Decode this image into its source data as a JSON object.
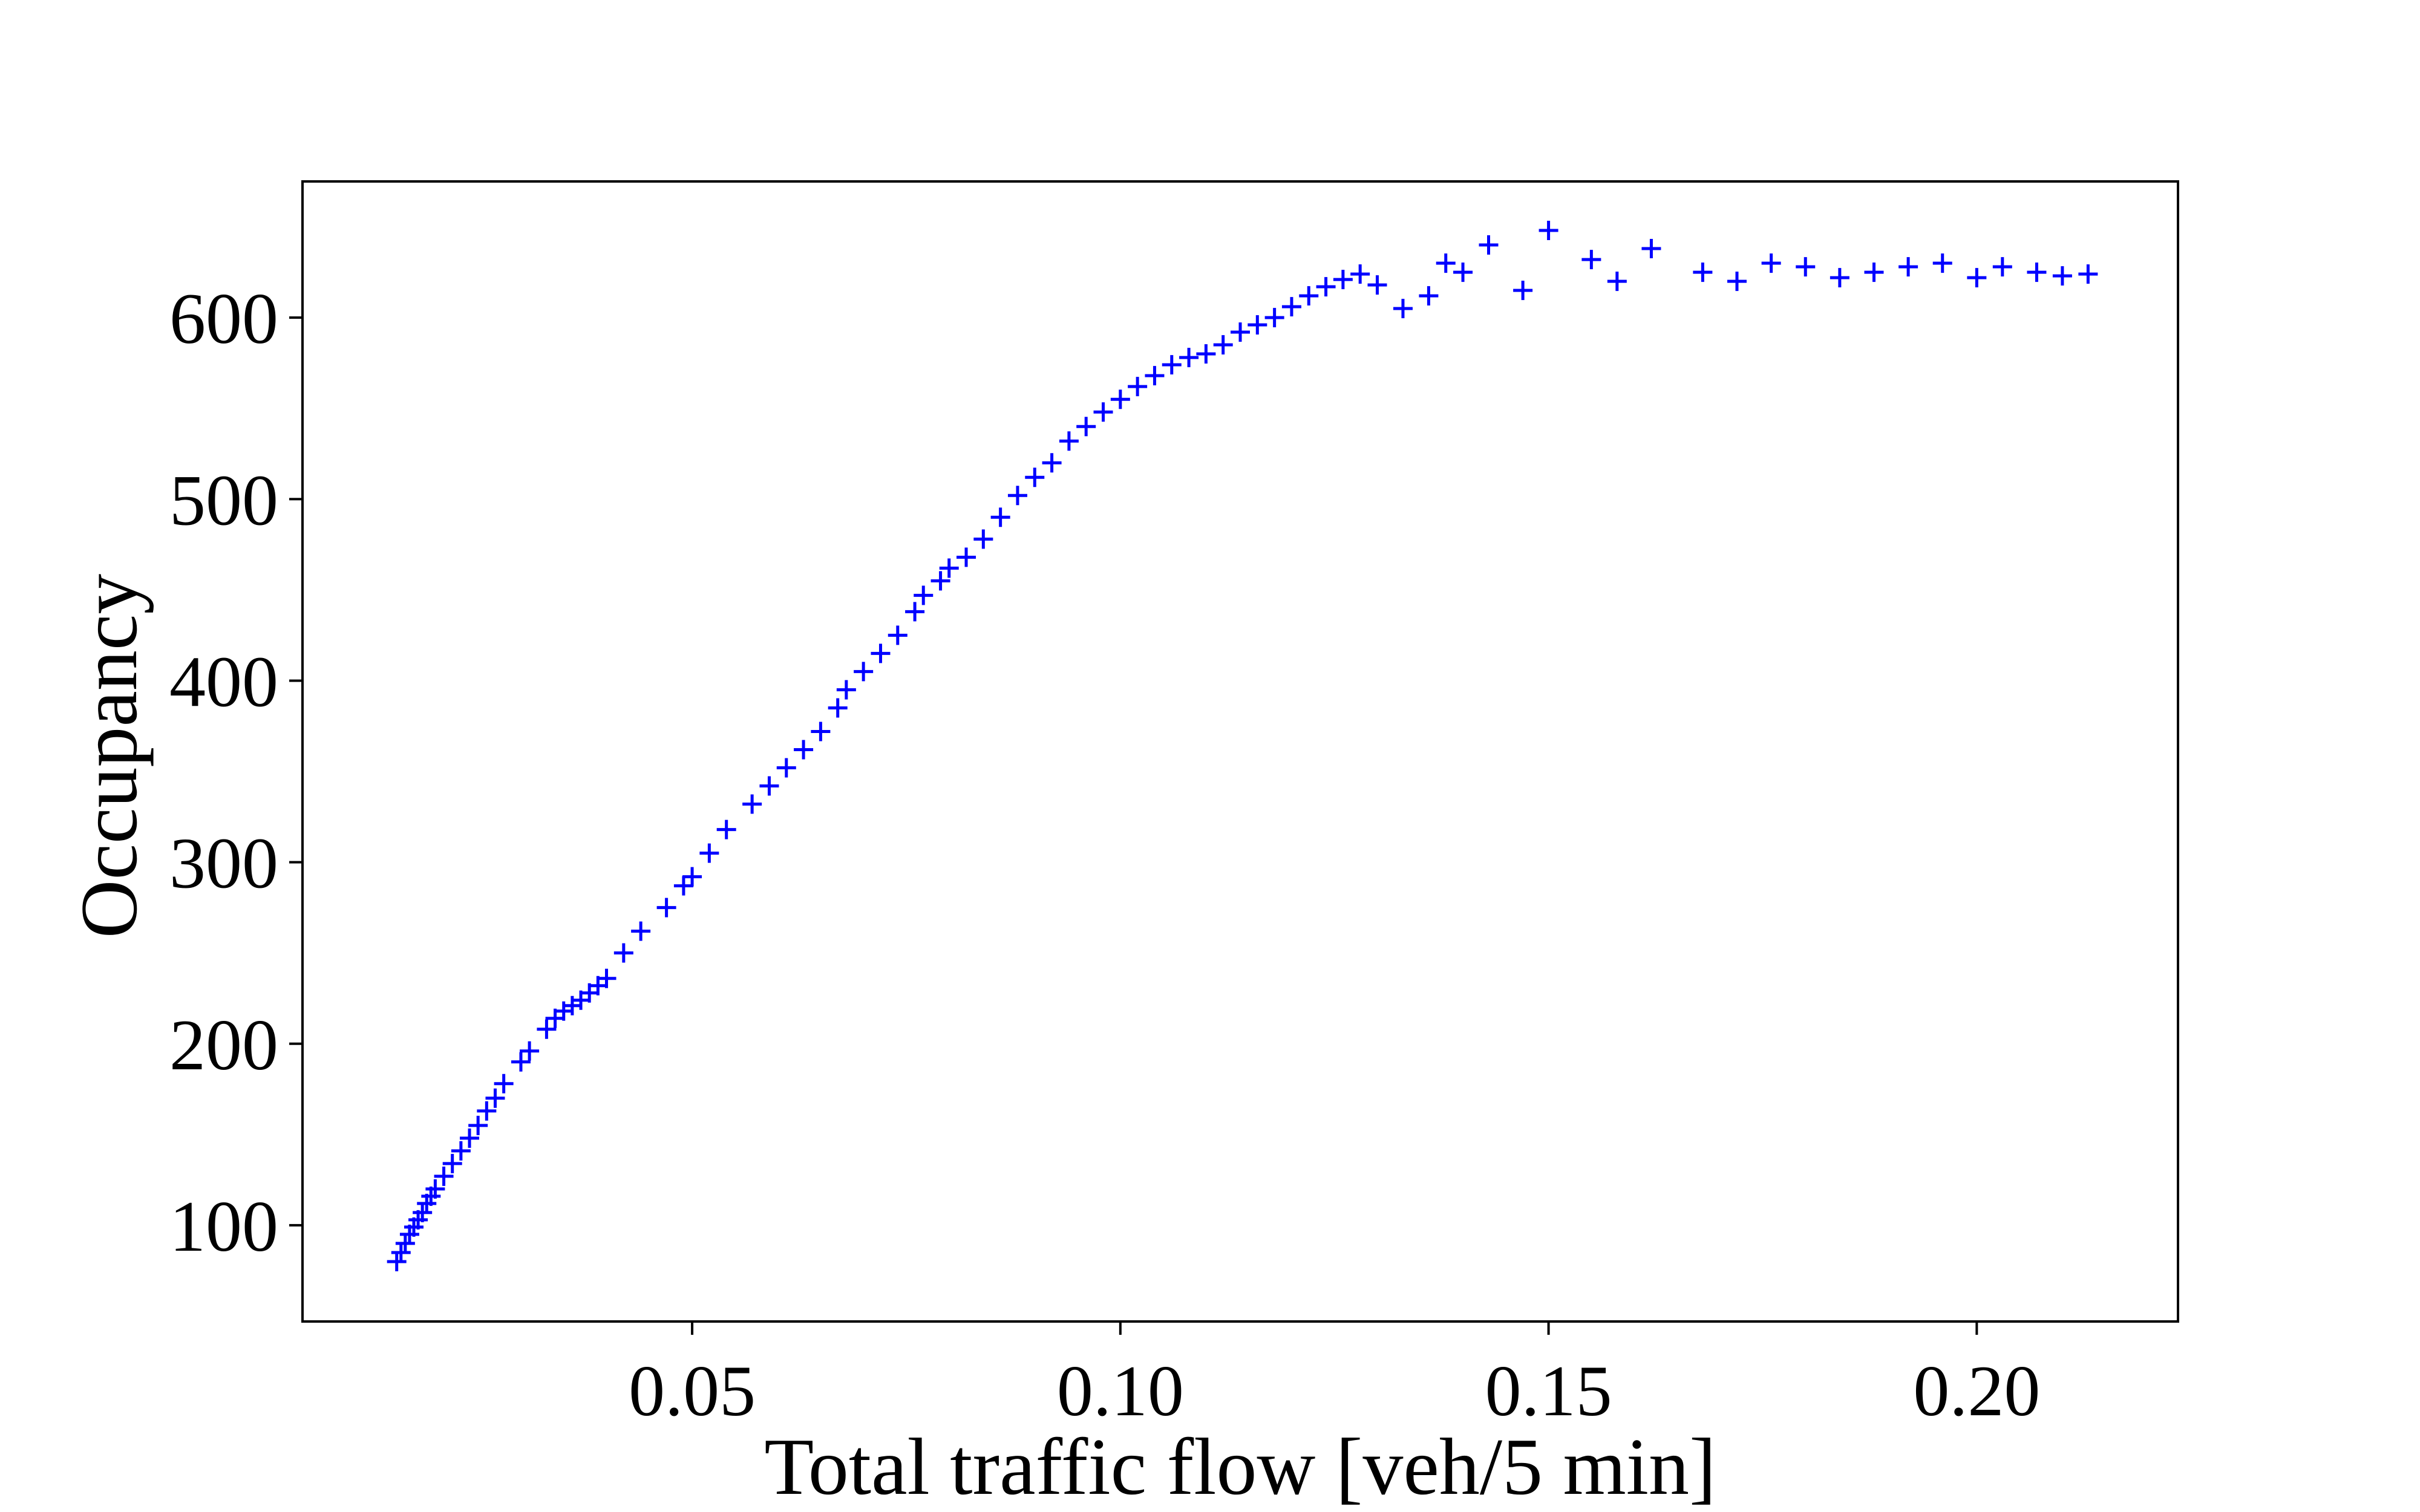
{
  "chart_data": {
    "type": "scatter",
    "title": "",
    "xlabel": "Total traffic flow [veh/5 min]",
    "ylabel": "Occupancy",
    "xlim": [
      0.0045,
      0.2235
    ],
    "ylim": [
      47,
      675
    ],
    "xticks": [
      0.05,
      0.1,
      0.15,
      0.2
    ],
    "xtick_labels": [
      "0.05",
      "0.10",
      "0.15",
      "0.20"
    ],
    "yticks": [
      100,
      200,
      300,
      400,
      500,
      600
    ],
    "ytick_labels": [
      "100",
      "200",
      "300",
      "400",
      "500",
      "600"
    ],
    "grid": false,
    "legend": "none",
    "marker": "plus",
    "color": "#0000ff",
    "series": [
      {
        "x": [
          0.0155,
          0.016,
          0.0165,
          0.017,
          0.0175,
          0.018,
          0.0185,
          0.019,
          0.0195,
          0.02,
          0.021,
          0.022,
          0.023,
          0.024,
          0.025,
          0.026,
          0.027,
          0.028,
          0.03,
          0.031,
          0.033,
          0.034,
          0.035,
          0.036,
          0.037,
          0.038,
          0.039,
          0.04,
          0.042,
          0.044,
          0.047,
          0.049,
          0.05,
          0.052,
          0.054,
          0.057,
          0.059,
          0.061,
          0.063,
          0.065,
          0.067,
          0.068,
          0.07,
          0.072,
          0.074,
          0.076,
          0.077,
          0.079,
          0.08,
          0.082,
          0.084,
          0.086,
          0.088,
          0.09,
          0.092,
          0.094,
          0.096,
          0.098,
          0.1,
          0.102,
          0.104,
          0.106,
          0.108,
          0.11,
          0.112,
          0.114,
          0.116,
          0.118,
          0.12,
          0.122,
          0.124,
          0.126,
          0.128,
          0.13,
          0.133,
          0.136,
          0.138,
          0.14,
          0.143,
          0.147,
          0.15,
          0.155,
          0.158,
          0.162,
          0.168,
          0.172,
          0.176,
          0.18,
          0.184,
          0.188,
          0.192,
          0.196,
          0.2,
          0.203,
          0.207,
          0.21,
          0.213
        ],
        "y": [
          80,
          85,
          90,
          95,
          99,
          103,
          107,
          112,
          116,
          120,
          127,
          134,
          141,
          148,
          155,
          163,
          170,
          178,
          190,
          196,
          208,
          214,
          218,
          221,
          224,
          228,
          232,
          236,
          250,
          262,
          275,
          287,
          292,
          305,
          318,
          332,
          342,
          352,
          362,
          372,
          385,
          395,
          405,
          415,
          425,
          438,
          447,
          455,
          462,
          468,
          478,
          490,
          502,
          512,
          520,
          532,
          540,
          548,
          555,
          562,
          568,
          574,
          578,
          580,
          585,
          592,
          596,
          600,
          606,
          612,
          617,
          621,
          624,
          618,
          605,
          612,
          630,
          625,
          640,
          615,
          648,
          632,
          620,
          638,
          625,
          620,
          630,
          628,
          622,
          625,
          628,
          630,
          622,
          628,
          625,
          623,
          624
        ]
      }
    ]
  }
}
